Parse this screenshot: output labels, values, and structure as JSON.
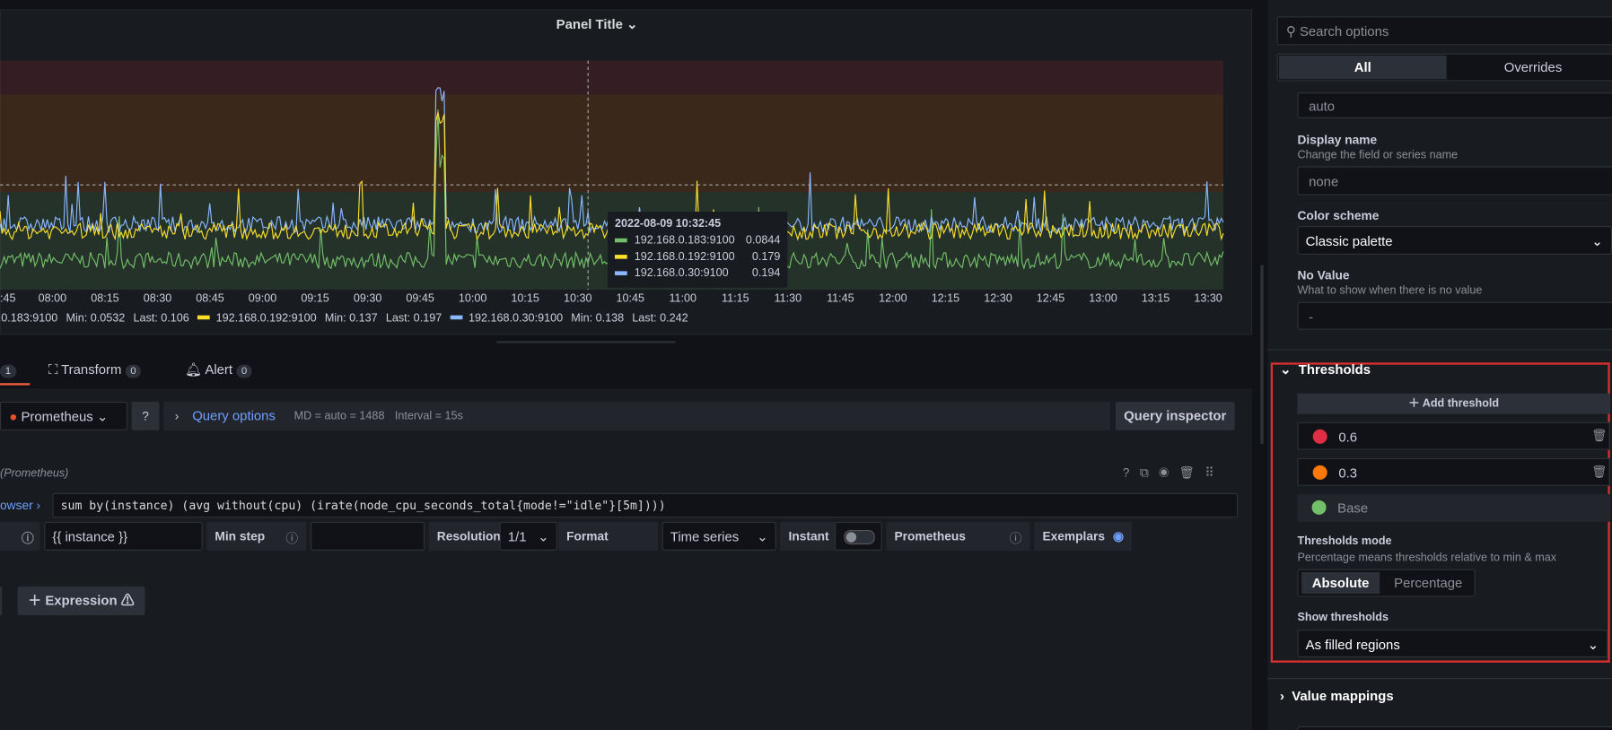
{
  "panel": {
    "title": "Panel Title",
    "xticks": [
      ":45",
      "08:00",
      "08:15",
      "08:30",
      "08:45",
      "09:00",
      "09:15",
      "09:30",
      "09:45",
      "10:00",
      "10:15",
      "10:30",
      "10:45",
      "11:00",
      "11:15",
      "11:30",
      "11:45",
      "12:00",
      "12:15",
      "12:30",
      "12:45",
      "13:00",
      "13:15",
      "13:30"
    ],
    "legend": [
      {
        "name": ".0.183:9100",
        "min": "Min: 0.0532",
        "last": "Last: 0.106",
        "color": "#73bf69"
      },
      {
        "name": "192.168.0.192:9100",
        "min": "Min: 0.137",
        "last": "Last: 0.197",
        "color": "#fade2a"
      },
      {
        "name": "192.168.0.30:9100",
        "min": "Min: 0.138",
        "last": "Last: 0.242",
        "color": "#8ab8ff"
      }
    ],
    "tooltip": {
      "time": "2022-08-09 10:32:45",
      "rows": [
        {
          "name": "192.168.0.183:9100",
          "value": 0.0844
        },
        {
          "name": "192.168.0.192:9100",
          "value": 0.179
        },
        {
          "name": "192.168.0.30:9100",
          "value": 0.194
        }
      ]
    }
  },
  "tabs": [
    {
      "label": "1"
    },
    {
      "label": "Transform",
      "count": "0"
    },
    {
      "label": "Alert",
      "count": "0"
    }
  ],
  "query": {
    "datasource": "Prometheus",
    "options": "Query options",
    "md": "MD = auto = 1488",
    "interval": "Interval = 15s",
    "inspector": "Query inspector",
    "header": "(Prometheus)",
    "browser": "owser ›",
    "expr": "sum by(instance) (avg without(cpu) (irate(node_cpu_seconds_total{mode!=\"idle\"}[5m])))",
    "legend": "{{ instance }}",
    "min_step": "Min step",
    "resolution": "Resolution",
    "resolution_value": "1/1",
    "format": "Format",
    "format_value": "Time series",
    "instant": "Instant",
    "type": "Prometheus",
    "exemplars": "Exemplars",
    "expression": "Expression"
  },
  "options": {
    "search": "Search options",
    "tab_all": "All",
    "tab_overrides": "Overrides",
    "unit_value": "auto",
    "display_name": "Display name",
    "display_name_desc": "Change the field or series name",
    "display_name_value": "none",
    "color_scheme": "Color scheme",
    "color_scheme_value": "Classic palette",
    "no_value": "No Value",
    "no_value_desc": "What to show when there is no value",
    "no_value_value": "-",
    "thresholds": {
      "title": "Thresholds",
      "add": "Add threshold",
      "items": [
        {
          "value": "0.6",
          "color": "#e02f44"
        },
        {
          "value": "0.3",
          "color": "#ff780a"
        },
        {
          "value": "Base",
          "color": "#73bf69"
        }
      ],
      "mode": "Thresholds mode",
      "mode_desc": "Percentage means thresholds relative to min & max",
      "absolute": "Absolute",
      "percentage": "Percentage",
      "show": "Show thresholds",
      "show_value": "As filled regions"
    },
    "value_mappings": "Value mappings"
  }
}
